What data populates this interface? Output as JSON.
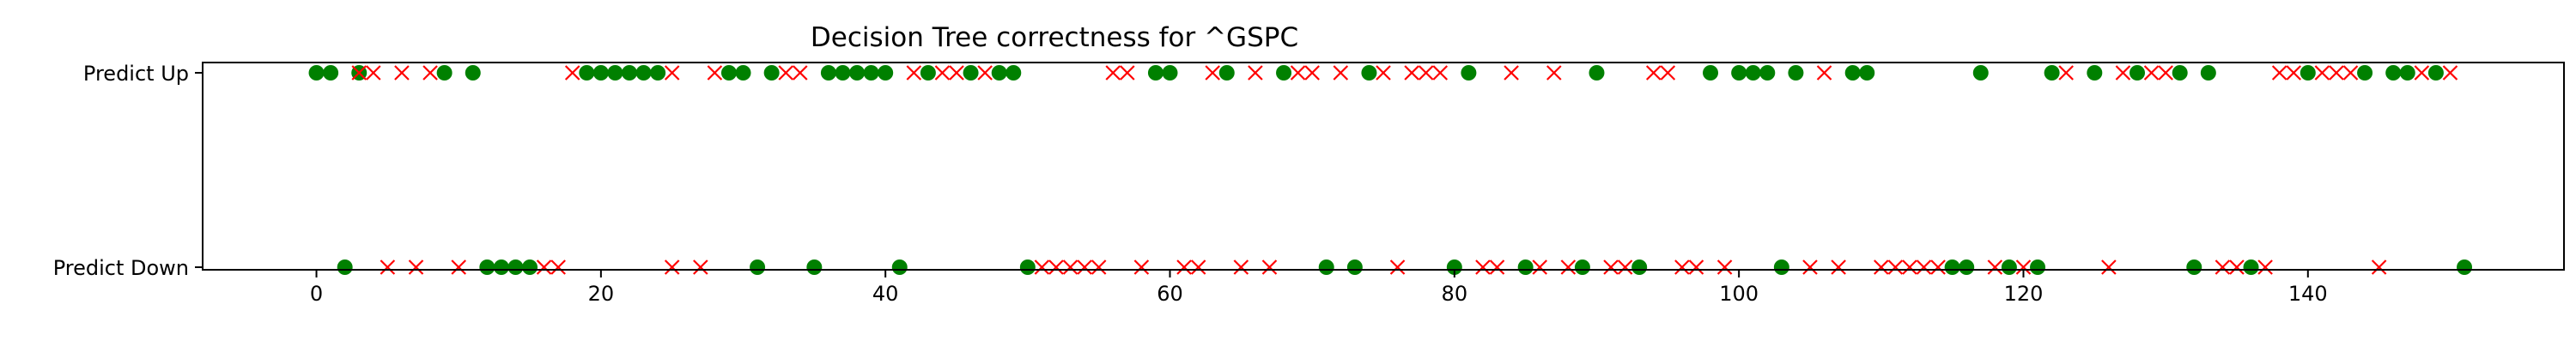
{
  "chart_data": {
    "type": "scatter",
    "title": "Decision Tree correctness for ^GSPC",
    "xlabel": "",
    "ylabel": "",
    "xlim": [
      -8,
      158
    ],
    "x_ticks": [
      0,
      20,
      40,
      60,
      80,
      100,
      120,
      140
    ],
    "y_categories": [
      "Predict Down",
      "Predict Up"
    ],
    "grid": false,
    "legend": "none",
    "colors": {
      "correct": "#008000",
      "incorrect": "#ff0000"
    },
    "series": [
      {
        "marker": "circle",
        "color": "#008000",
        "up": [
          0,
          1,
          3,
          9,
          11,
          19,
          20,
          21,
          22,
          23,
          24,
          29,
          30,
          32,
          36,
          37,
          38,
          39,
          40,
          43,
          46,
          48,
          49,
          59,
          60,
          64,
          68,
          74,
          81,
          90,
          98,
          100,
          101,
          102,
          104,
          108,
          109,
          117,
          122,
          125,
          128,
          131,
          133,
          140,
          144,
          146,
          147,
          149
        ],
        "down": [
          2,
          12,
          13,
          14,
          15,
          31,
          35,
          41,
          50,
          71,
          73,
          80,
          85,
          89,
          93,
          103,
          115,
          116,
          119,
          121,
          132,
          136,
          151
        ]
      },
      {
        "marker": "x",
        "color": "#ff0000",
        "up": [
          3,
          4,
          6,
          8,
          18,
          25,
          28,
          33,
          34,
          42,
          44,
          45,
          47,
          56,
          57,
          63,
          66,
          69,
          70,
          72,
          75,
          77,
          78,
          79,
          84,
          87,
          94,
          95,
          106,
          123,
          127,
          129,
          130,
          138,
          139,
          141,
          142,
          143,
          148,
          150
        ],
        "down": [
          5,
          7,
          10,
          16,
          17,
          25,
          27,
          51,
          52,
          53,
          54,
          55,
          58,
          61,
          62,
          65,
          67,
          76,
          82,
          83,
          86,
          88,
          91,
          92,
          96,
          97,
          99,
          105,
          107,
          110,
          111,
          112,
          113,
          114,
          118,
          120,
          126,
          134,
          135,
          137,
          145
        ]
      }
    ]
  }
}
